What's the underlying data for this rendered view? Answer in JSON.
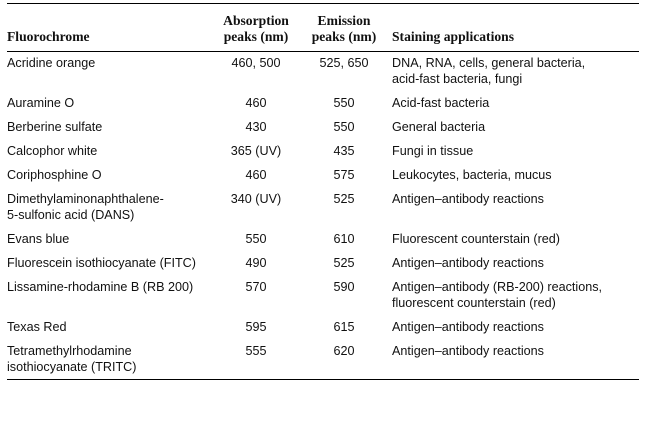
{
  "headers": {
    "fluorochrome": "Fluorochrome",
    "absorption_line1": "Absorption",
    "absorption_line2": "peaks (nm)",
    "emission_line1": "Emission",
    "emission_line2": "peaks (nm)",
    "applications": "Staining applications"
  },
  "rows": [
    {
      "name": [
        "Acridine orange"
      ],
      "absorption": "460, 500",
      "emission": "525, 650",
      "applications": [
        "DNA, RNA, cells, general bacteria,",
        "acid-fast bacteria, fungi"
      ]
    },
    {
      "name": [
        "Auramine O"
      ],
      "absorption": "460",
      "emission": "550",
      "applications": [
        "Acid-fast bacteria"
      ]
    },
    {
      "name": [
        "Berberine sulfate"
      ],
      "absorption": "430",
      "emission": "550",
      "applications": [
        "General bacteria"
      ]
    },
    {
      "name": [
        "Calcophor white"
      ],
      "absorption": "365 (UV)",
      "emission": "435",
      "applications": [
        "Fungi in tissue"
      ]
    },
    {
      "name": [
        "Coriphosphine O"
      ],
      "absorption": "460",
      "emission": "575",
      "applications": [
        "Leukocytes, bacteria, mucus"
      ]
    },
    {
      "name": [
        "Dimethylaminonaphthalene-",
        "5-sulfonic acid (DANS)"
      ],
      "absorption": "340 (UV)",
      "emission": "525",
      "applications": [
        "Antigen–antibody reactions"
      ]
    },
    {
      "name": [
        "Evans blue"
      ],
      "absorption": "550",
      "emission": "610",
      "applications": [
        "Fluorescent counterstain (red)"
      ]
    },
    {
      "name": [
        "Fluorescein isothiocyanate (FITC)"
      ],
      "absorption": "490",
      "emission": "525",
      "applications": [
        "Antigen–antibody reactions"
      ]
    },
    {
      "name": [
        "Lissamine-rhodamine B (RB 200)"
      ],
      "absorption": "570",
      "emission": "590",
      "applications": [
        "Antigen–antibody (RB-200) reactions,",
        "fluorescent counterstain (red)"
      ]
    },
    {
      "name": [
        "Texas Red"
      ],
      "absorption": "595",
      "emission": "615",
      "applications": [
        "Antigen–antibody reactions"
      ]
    },
    {
      "name": [
        "Tetramethylrhodamine",
        "isothiocyanate (TRITC)"
      ],
      "absorption": "555",
      "emission": "620",
      "applications": [
        "Antigen–antibody reactions"
      ]
    }
  ]
}
